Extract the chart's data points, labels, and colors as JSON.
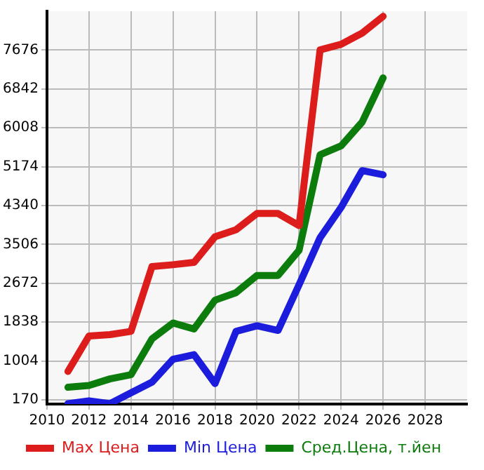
{
  "chart_data": {
    "type": "line",
    "x": [
      2011,
      2012,
      2013,
      2014,
      2015,
      2016,
      2017,
      2018,
      2019,
      2020,
      2021,
      2022,
      2023,
      2024,
      2025,
      2026
    ],
    "series": [
      {
        "name": "Max Цена",
        "color": "#dd1c1c",
        "values": [
          780,
          1540,
          1570,
          1640,
          3030,
          3070,
          3120,
          3670,
          3820,
          4170,
          4170,
          3910,
          7680,
          7800,
          8040,
          8400
        ]
      },
      {
        "name": "Min Цена",
        "color": "#1c1cdd",
        "values": [
          90,
          150,
          90,
          320,
          550,
          1040,
          1140,
          520,
          1640,
          1760,
          1660,
          2640,
          3650,
          4300,
          5090,
          5000
        ]
      },
      {
        "name": "Сред.Цена, т.йен",
        "color": "#0c7c0c",
        "values": [
          440,
          480,
          620,
          710,
          1480,
          1820,
          1690,
          2310,
          2470,
          2840,
          2840,
          3380,
          5430,
          5620,
          6130,
          7080
        ]
      }
    ],
    "xlim": [
      2010,
      2030
    ],
    "xticks": [
      2010,
      2012,
      2014,
      2016,
      2018,
      2020,
      2022,
      2024,
      2026,
      2028
    ],
    "ylim": [
      80,
      8510
    ],
    "yticks": [
      170,
      1004,
      1838,
      2672,
      3506,
      4340,
      5174,
      6008,
      6842,
      7676
    ],
    "grid": true,
    "legend": "bottom",
    "marker": "none",
    "line_style": "solid"
  }
}
